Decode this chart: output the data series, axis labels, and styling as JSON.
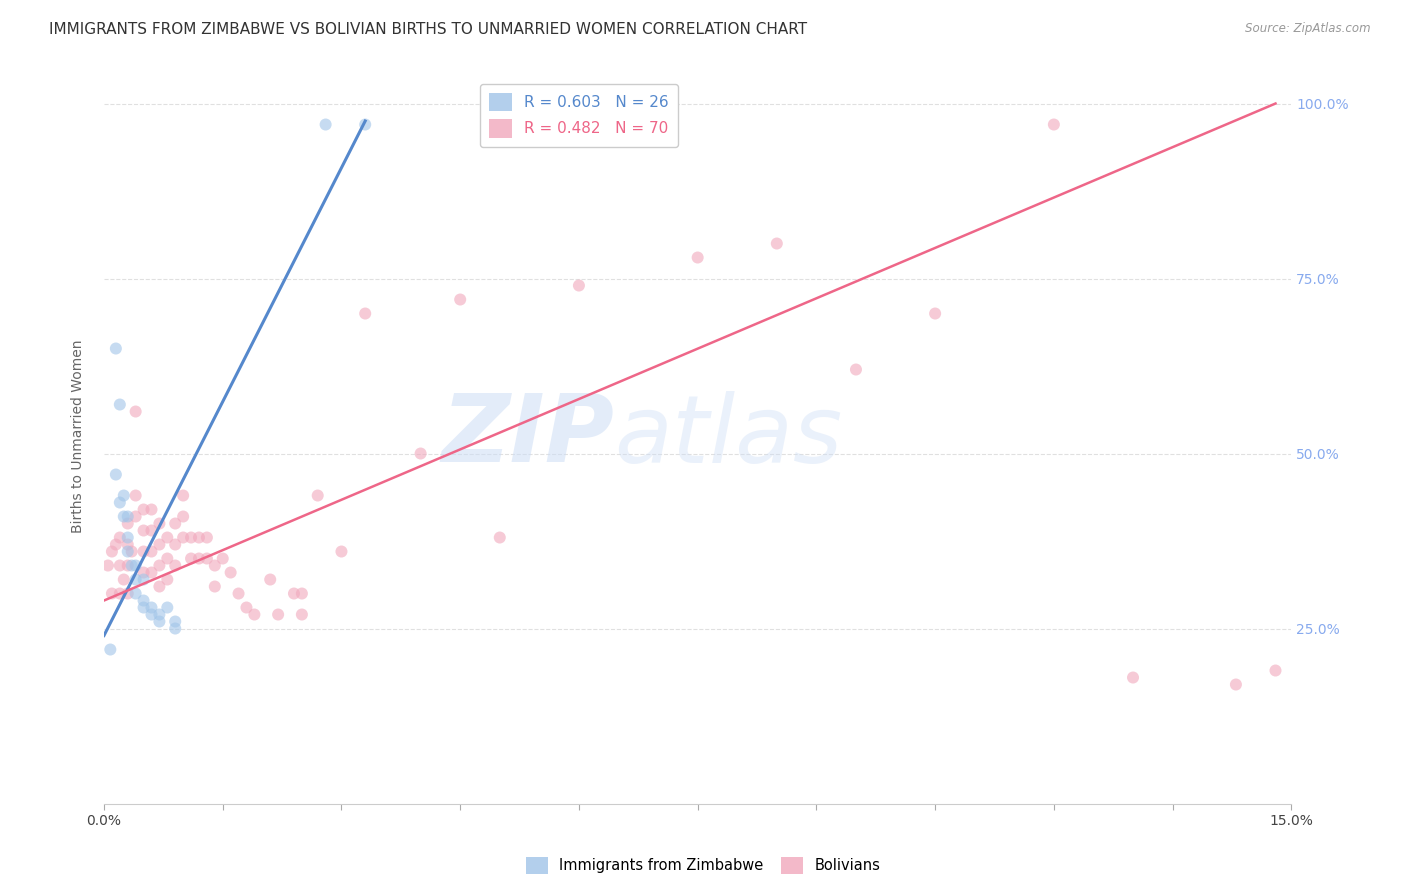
{
  "title": "IMMIGRANTS FROM ZIMBABWE VS BOLIVIAN BIRTHS TO UNMARRIED WOMEN CORRELATION CHART",
  "source": "Source: ZipAtlas.com",
  "ylabel": "Births to Unmarried Women",
  "xlim": [
    0.0,
    0.15
  ],
  "ylim": [
    0.0,
    1.05
  ],
  "ytick_labels": [
    "25.0%",
    "50.0%",
    "75.0%",
    "100.0%"
  ],
  "ytick_values": [
    0.25,
    0.5,
    0.75,
    1.0
  ],
  "watermark_zip": "ZIP",
  "watermark_atlas": "atlas",
  "legend_entries": [
    {
      "label": "R = 0.603   N = 26",
      "color": "#a8c8f0"
    },
    {
      "label": "R = 0.482   N = 70",
      "color": "#f4b8c8"
    }
  ],
  "blue_scatter_x": [
    0.0008,
    0.0015,
    0.0015,
    0.002,
    0.002,
    0.0025,
    0.0025,
    0.003,
    0.003,
    0.003,
    0.0035,
    0.004,
    0.004,
    0.004,
    0.005,
    0.005,
    0.005,
    0.006,
    0.006,
    0.007,
    0.007,
    0.008,
    0.009,
    0.009,
    0.028,
    0.033
  ],
  "blue_scatter_y": [
    0.22,
    0.65,
    0.47,
    0.57,
    0.43,
    0.44,
    0.41,
    0.41,
    0.38,
    0.36,
    0.34,
    0.34,
    0.32,
    0.3,
    0.32,
    0.29,
    0.28,
    0.28,
    0.27,
    0.27,
    0.26,
    0.28,
    0.26,
    0.25,
    0.97,
    0.97
  ],
  "pink_scatter_x": [
    0.0005,
    0.001,
    0.001,
    0.0015,
    0.002,
    0.002,
    0.002,
    0.0025,
    0.003,
    0.003,
    0.003,
    0.003,
    0.0035,
    0.004,
    0.004,
    0.004,
    0.005,
    0.005,
    0.005,
    0.005,
    0.006,
    0.006,
    0.006,
    0.006,
    0.007,
    0.007,
    0.007,
    0.007,
    0.008,
    0.008,
    0.008,
    0.009,
    0.009,
    0.009,
    0.01,
    0.01,
    0.01,
    0.011,
    0.011,
    0.012,
    0.012,
    0.013,
    0.013,
    0.014,
    0.014,
    0.015,
    0.016,
    0.017,
    0.018,
    0.019,
    0.021,
    0.022,
    0.024,
    0.025,
    0.025,
    0.027,
    0.03,
    0.033,
    0.04,
    0.045,
    0.05,
    0.06,
    0.075,
    0.085,
    0.095,
    0.105,
    0.12,
    0.13,
    0.143,
    0.148
  ],
  "pink_scatter_y": [
    0.34,
    0.36,
    0.3,
    0.37,
    0.38,
    0.34,
    0.3,
    0.32,
    0.4,
    0.37,
    0.34,
    0.3,
    0.36,
    0.56,
    0.44,
    0.41,
    0.42,
    0.39,
    0.36,
    0.33,
    0.42,
    0.39,
    0.36,
    0.33,
    0.4,
    0.37,
    0.34,
    0.31,
    0.38,
    0.35,
    0.32,
    0.4,
    0.37,
    0.34,
    0.44,
    0.41,
    0.38,
    0.38,
    0.35,
    0.38,
    0.35,
    0.38,
    0.35,
    0.34,
    0.31,
    0.35,
    0.33,
    0.3,
    0.28,
    0.27,
    0.32,
    0.27,
    0.3,
    0.3,
    0.27,
    0.44,
    0.36,
    0.7,
    0.5,
    0.72,
    0.38,
    0.74,
    0.78,
    0.8,
    0.62,
    0.7,
    0.97,
    0.18,
    0.17,
    0.19
  ],
  "blue_line_x": [
    0.0,
    0.033
  ],
  "blue_line_y": [
    0.24,
    0.975
  ],
  "pink_line_x": [
    0.0,
    0.148
  ],
  "pink_line_y": [
    0.29,
    1.0
  ],
  "bg_color": "#ffffff",
  "scatter_alpha": 0.6,
  "scatter_size": 75,
  "blue_color": "#a0c4e8",
  "pink_color": "#f0a8bc",
  "blue_line_color": "#5588cc",
  "pink_line_color": "#ee6688",
  "grid_color": "#e0e0e0",
  "title_fontsize": 11,
  "axis_label_fontsize": 10,
  "tick_fontsize": 10,
  "right_tick_color": "#88aaee"
}
